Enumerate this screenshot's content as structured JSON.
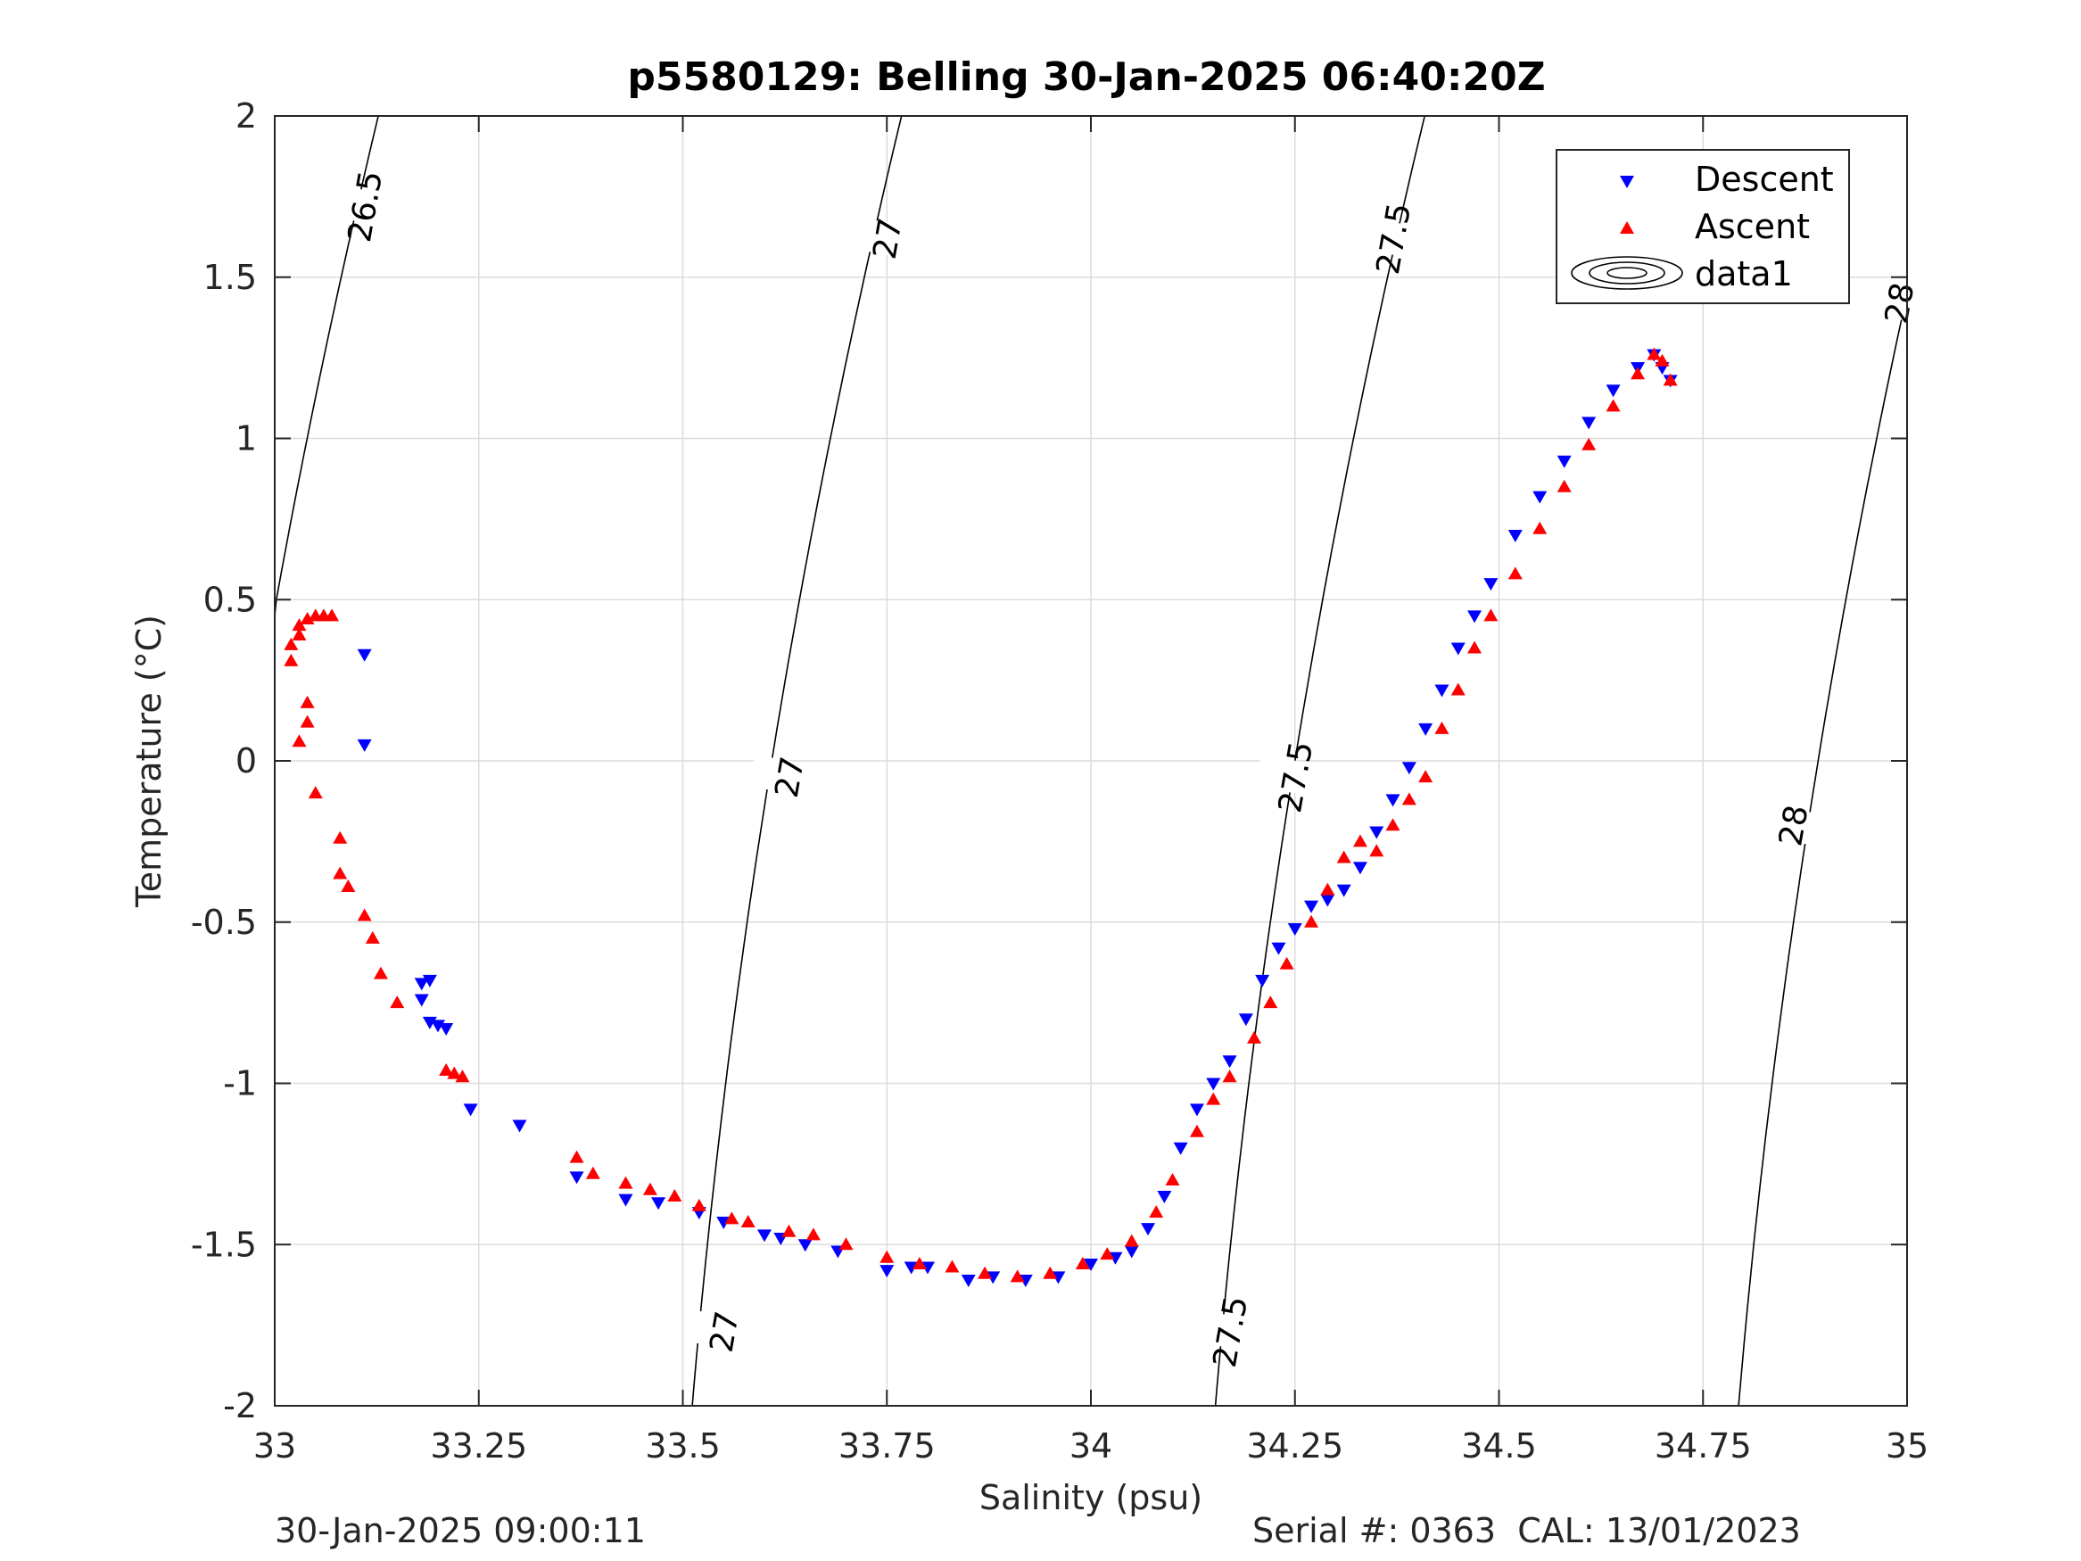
{
  "chart_data": {
    "type": "scatter",
    "title": "p5580129: Belling 30-Jan-2025 06:40:20Z",
    "xlabel": "Salinity (psu)",
    "ylabel": "Temperature (°C)",
    "xlim": [
      33,
      35
    ],
    "ylim": [
      -2,
      2
    ],
    "xticks": [
      33,
      33.25,
      33.5,
      33.75,
      34,
      34.25,
      34.5,
      34.75,
      35
    ],
    "xtick_labels": [
      "33",
      "33.25",
      "33.5",
      "33.75",
      "34",
      "34.25",
      "34.5",
      "34.75",
      "35"
    ],
    "yticks": [
      -2,
      -1.5,
      -1,
      -0.5,
      0,
      0.5,
      1,
      1.5,
      2
    ],
    "ytick_labels": [
      "-2",
      "-1.5",
      "-1",
      "-0.5",
      "0",
      "0.5",
      "1",
      "1.5",
      "2"
    ],
    "grid": true,
    "legend": {
      "position": "top-right",
      "entries": [
        "Descent",
        "Ascent",
        "data1"
      ]
    },
    "colors": {
      "descent": "#0000ff",
      "ascent": "#ff0000",
      "contour": "#000000"
    },
    "contour_labels": [
      {
        "label": "26.5",
        "s": 33.11,
        "t": 1.72
      },
      {
        "label": "27",
        "s": 33.75,
        "t": 1.62
      },
      {
        "label": "27",
        "s": 33.63,
        "t": -0.05
      },
      {
        "label": "27",
        "s": 33.55,
        "t": -1.77
      },
      {
        "label": "27.5",
        "s": 34.37,
        "t": 1.62
      },
      {
        "label": "27.5",
        "s": 34.25,
        "t": -0.05
      },
      {
        "label": "27.5",
        "s": 34.17,
        "t": -1.77
      },
      {
        "label": "28",
        "s": 34.99,
        "t": 1.42
      },
      {
        "label": "28",
        "s": 34.86,
        "t": -0.2
      }
    ],
    "series": [
      {
        "name": "Descent",
        "marker": "triangle-down",
        "points": [
          [
            33.11,
            0.33
          ],
          [
            33.11,
            0.05
          ],
          [
            33.18,
            -0.69
          ],
          [
            33.19,
            -0.68
          ],
          [
            33.18,
            -0.74
          ],
          [
            33.19,
            -0.81
          ],
          [
            33.2,
            -0.82
          ],
          [
            33.21,
            -0.83
          ],
          [
            33.24,
            -1.08
          ],
          [
            33.3,
            -1.13
          ],
          [
            33.37,
            -1.29
          ],
          [
            33.43,
            -1.36
          ],
          [
            33.47,
            -1.37
          ],
          [
            33.52,
            -1.4
          ],
          [
            33.55,
            -1.43
          ],
          [
            33.6,
            -1.47
          ],
          [
            33.62,
            -1.48
          ],
          [
            33.65,
            -1.5
          ],
          [
            33.69,
            -1.52
          ],
          [
            33.75,
            -1.58
          ],
          [
            33.78,
            -1.57
          ],
          [
            33.8,
            -1.57
          ],
          [
            33.85,
            -1.61
          ],
          [
            33.88,
            -1.6
          ],
          [
            33.92,
            -1.61
          ],
          [
            33.96,
            -1.6
          ],
          [
            34.0,
            -1.56
          ],
          [
            34.03,
            -1.54
          ],
          [
            34.05,
            -1.52
          ],
          [
            34.07,
            -1.45
          ],
          [
            34.09,
            -1.35
          ],
          [
            34.11,
            -1.2
          ],
          [
            34.13,
            -1.08
          ],
          [
            34.15,
            -1.0
          ],
          [
            34.17,
            -0.93
          ],
          [
            34.19,
            -0.8
          ],
          [
            34.21,
            -0.68
          ],
          [
            34.23,
            -0.58
          ],
          [
            34.25,
            -0.52
          ],
          [
            34.27,
            -0.45
          ],
          [
            34.29,
            -0.43
          ],
          [
            34.31,
            -0.4
          ],
          [
            34.33,
            -0.33
          ],
          [
            34.35,
            -0.22
          ],
          [
            34.37,
            -0.12
          ],
          [
            34.39,
            -0.02
          ],
          [
            34.41,
            0.1
          ],
          [
            34.43,
            0.22
          ],
          [
            34.45,
            0.35
          ],
          [
            34.47,
            0.45
          ],
          [
            34.49,
            0.55
          ],
          [
            34.52,
            0.7
          ],
          [
            34.55,
            0.82
          ],
          [
            34.58,
            0.93
          ],
          [
            34.61,
            1.05
          ],
          [
            34.64,
            1.15
          ],
          [
            34.67,
            1.22
          ],
          [
            34.69,
            1.26
          ],
          [
            34.7,
            1.22
          ],
          [
            34.71,
            1.18
          ]
        ]
      },
      {
        "name": "Ascent",
        "marker": "triangle-up",
        "points": [
          [
            33.02,
            0.31
          ],
          [
            33.02,
            0.36
          ],
          [
            33.03,
            0.39
          ],
          [
            33.03,
            0.42
          ],
          [
            33.04,
            0.44
          ],
          [
            33.05,
            0.45
          ],
          [
            33.06,
            0.45
          ],
          [
            33.07,
            0.45
          ],
          [
            33.04,
            0.18
          ],
          [
            33.04,
            0.12
          ],
          [
            33.03,
            0.06
          ],
          [
            33.05,
            -0.1
          ],
          [
            33.08,
            -0.24
          ],
          [
            33.08,
            -0.35
          ],
          [
            33.09,
            -0.39
          ],
          [
            33.11,
            -0.48
          ],
          [
            33.12,
            -0.55
          ],
          [
            33.13,
            -0.66
          ],
          [
            33.15,
            -0.75
          ],
          [
            33.21,
            -0.96
          ],
          [
            33.22,
            -0.97
          ],
          [
            33.23,
            -0.98
          ],
          [
            33.37,
            -1.23
          ],
          [
            33.39,
            -1.28
          ],
          [
            33.43,
            -1.31
          ],
          [
            33.46,
            -1.33
          ],
          [
            33.49,
            -1.35
          ],
          [
            33.52,
            -1.38
          ],
          [
            33.56,
            -1.42
          ],
          [
            33.58,
            -1.43
          ],
          [
            33.63,
            -1.46
          ],
          [
            33.66,
            -1.47
          ],
          [
            33.7,
            -1.5
          ],
          [
            33.75,
            -1.54
          ],
          [
            33.79,
            -1.56
          ],
          [
            33.83,
            -1.57
          ],
          [
            33.87,
            -1.59
          ],
          [
            33.91,
            -1.6
          ],
          [
            33.95,
            -1.59
          ],
          [
            33.99,
            -1.56
          ],
          [
            34.02,
            -1.53
          ],
          [
            34.05,
            -1.49
          ],
          [
            34.08,
            -1.4
          ],
          [
            34.1,
            -1.3
          ],
          [
            34.13,
            -1.15
          ],
          [
            34.15,
            -1.05
          ],
          [
            34.17,
            -0.98
          ],
          [
            34.2,
            -0.86
          ],
          [
            34.22,
            -0.75
          ],
          [
            34.24,
            -0.63
          ],
          [
            34.27,
            -0.5
          ],
          [
            34.29,
            -0.4
          ],
          [
            34.31,
            -0.3
          ],
          [
            34.33,
            -0.25
          ],
          [
            34.35,
            -0.28
          ],
          [
            34.37,
            -0.2
          ],
          [
            34.39,
            -0.12
          ],
          [
            34.41,
            -0.05
          ],
          [
            34.43,
            0.1
          ],
          [
            34.45,
            0.22
          ],
          [
            34.47,
            0.35
          ],
          [
            34.49,
            0.45
          ],
          [
            34.52,
            0.58
          ],
          [
            34.55,
            0.72
          ],
          [
            34.58,
            0.85
          ],
          [
            34.61,
            0.98
          ],
          [
            34.64,
            1.1
          ],
          [
            34.67,
            1.2
          ],
          [
            34.69,
            1.26
          ],
          [
            34.7,
            1.24
          ],
          [
            34.71,
            1.18
          ]
        ]
      }
    ]
  },
  "footer": {
    "left": "30-Jan-2025 09:00:11",
    "right": "Serial #: 0363  CAL: 13/01/2023"
  }
}
